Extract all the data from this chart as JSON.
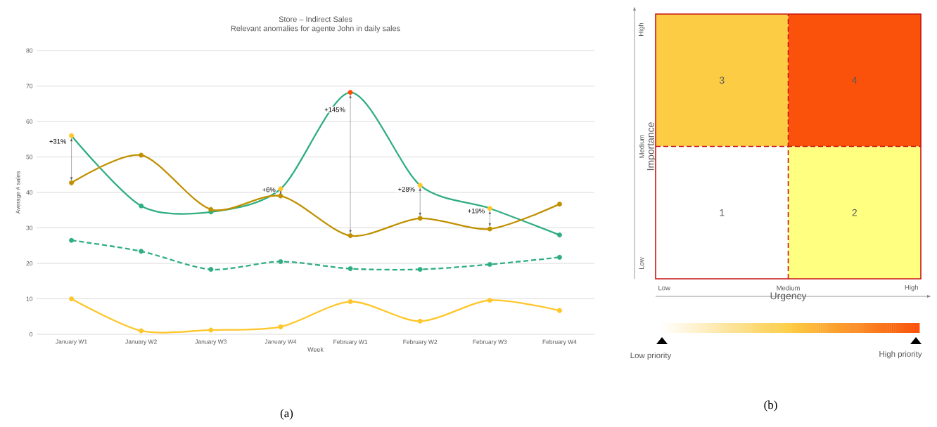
{
  "chart_data": [
    {
      "type": "line",
      "title": "Store – Indirect Sales",
      "subtitle": "Relevant anomalies for agente John in daily sales",
      "xlabel": "Week",
      "ylabel": "Average # sales",
      "categories": [
        "January W1",
        "January W2",
        "January W3",
        "January W4",
        "February W1",
        "February W2",
        "February W3",
        "February W4"
      ],
      "series": [
        {
          "color": "#2fae80",
          "values": [
            56,
            36.2,
            34.5,
            41,
            68.2,
            42,
            35.5,
            28
          ],
          "colors": [
            "#ffc629",
            "#2fae80",
            "#2fae80",
            "#ffc629",
            "#ff4b00",
            "#ffc629",
            "#ffc629",
            "#2fae80"
          ]
        },
        {
          "color": "#c09000",
          "values": [
            42.7,
            50.5,
            35.2,
            39,
            27.8,
            32.7,
            29.7,
            36.7
          ]
        },
        {
          "color": "#2fae80",
          "line_style": "dashed",
          "values": [
            26.5,
            23.4,
            18.3,
            20.5,
            18.5,
            18.3,
            19.7,
            21.7
          ]
        },
        {
          "color": "#ffc629",
          "values": [
            10,
            1,
            1.2,
            2.1,
            9.2,
            3.7,
            9.6,
            6.7
          ]
        }
      ],
      "ylim": [
        0,
        80
      ],
      "yticks": [
        0,
        10,
        20,
        30,
        40,
        50,
        60,
        70,
        80
      ],
      "grid": "y",
      "marker": "circle",
      "line_style": "solid",
      "annotations": [
        {
          "text": "+31%",
          "x": "January W1",
          "y": 56
        },
        {
          "text": "+6%",
          "x": "January W4",
          "y": 41
        },
        {
          "text": "+145%",
          "x": "February W1",
          "y": 68.2
        },
        {
          "text": "+28%",
          "x": "February W2",
          "y": 42
        },
        {
          "text": "+19%",
          "x": "February W3",
          "y": 35.5
        },
        "(a)"
      ]
    },
    {
      "type": "other",
      "xlabel": "Urgency",
      "ylabel": "Importance",
      "categories": [
        "Low",
        "Medium",
        "High"
      ],
      "y_categories": [
        "High",
        "Medium",
        "Low"
      ],
      "colors": [
        "#fccc44",
        "#fa520a",
        "#ffffff",
        "#ffff80"
      ],
      "annotations": [
        "3",
        "4",
        "1",
        "2",
        "Low priority",
        "High priority",
        "(b)"
      ]
    }
  ]
}
